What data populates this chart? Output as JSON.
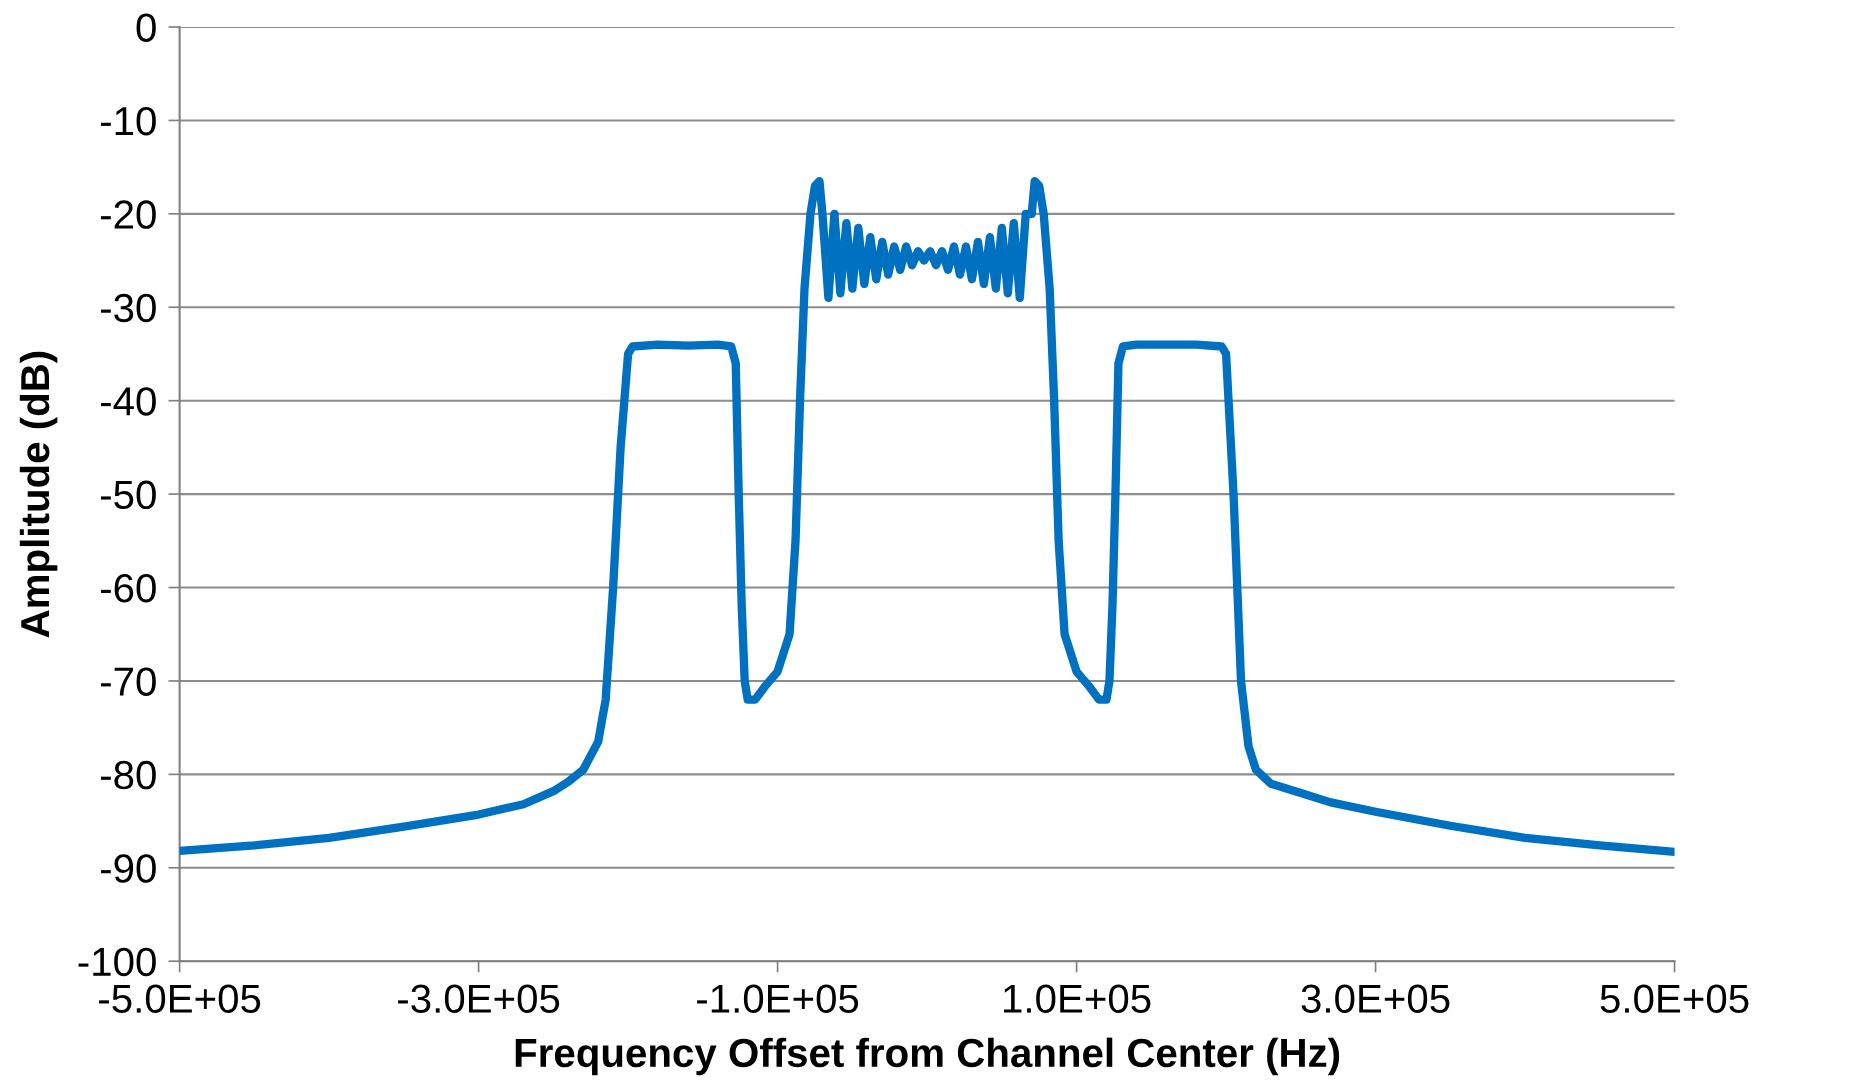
{
  "chart_data": {
    "type": "line",
    "xlabel": "Frequency Offset from Channel Center (Hz)",
    "ylabel": "Amplitude (dB)",
    "xlim": [
      -500000,
      500000
    ],
    "ylim": [
      -100,
      0
    ],
    "xticks": [
      {
        "value": -500000,
        "label": "-5.0E+05"
      },
      {
        "value": -300000,
        "label": "-3.0E+05"
      },
      {
        "value": -100000,
        "label": "-1.0E+05"
      },
      {
        "value": 100000,
        "label": "1.0E+05"
      },
      {
        "value": 300000,
        "label": "3.0E+05"
      },
      {
        "value": 500000,
        "label": "5.0E+05"
      }
    ],
    "yticks": [
      0,
      -10,
      -20,
      -30,
      -40,
      -50,
      -60,
      -70,
      -80,
      -90,
      -100
    ],
    "grid": "y",
    "legend": false,
    "marker": "none",
    "line_style": "solid",
    "series": [
      {
        "color": "#0070c0",
        "x": [
          -500000,
          -450000,
          -400000,
          -350000,
          -300000,
          -270000,
          -250000,
          -240000,
          -230000,
          -220000,
          -215000,
          -210000,
          -205000,
          -200000,
          -197000,
          -180000,
          -160000,
          -140000,
          -131000,
          -128000,
          -126000,
          -124000,
          -122000,
          -120000,
          -115000,
          -108000,
          -100000,
          -92000,
          -88000,
          -85000,
          -82000,
          -78000,
          -75000,
          -72000,
          -70000,
          -66000,
          -62000,
          -58000,
          -54000,
          -50000,
          -46000,
          -42000,
          -38000,
          -34000,
          -30000,
          -26000,
          -22000,
          -18000,
          -14000,
          -10000,
          -6000,
          -2000,
          2000,
          6000,
          10000,
          14000,
          18000,
          22000,
          26000,
          30000,
          34000,
          38000,
          42000,
          46000,
          50000,
          54000,
          58000,
          62000,
          66000,
          70000,
          72000,
          75000,
          78000,
          82000,
          85000,
          88000,
          92000,
          100000,
          108000,
          115000,
          120000,
          122000,
          124000,
          126000,
          128000,
          131000,
          140000,
          160000,
          180000,
          197000,
          200000,
          205000,
          210000,
          215000,
          220000,
          230000,
          250000,
          270000,
          300000,
          350000,
          400000,
          450000,
          500000
        ],
        "values": [
          -88.2,
          -87.6,
          -86.8,
          -85.6,
          -84.3,
          -83.2,
          -81.8,
          -80.8,
          -79.5,
          -76.5,
          -72,
          -60,
          -45,
          -35,
          -34.2,
          -34,
          -34.1,
          -34,
          -34.2,
          -36,
          -50,
          -62,
          -70,
          -72,
          -72,
          -70.5,
          -69,
          -65,
          -55,
          -40,
          -28,
          -20,
          -17,
          -16.5,
          -20,
          -29,
          -20,
          -28.5,
          -21,
          -28,
          -21.5,
          -27.5,
          -22.5,
          -27,
          -23,
          -26.5,
          -23.5,
          -26,
          -23.5,
          -25.5,
          -24,
          -25,
          -24,
          -25.5,
          -24,
          -26,
          -23.5,
          -26.5,
          -23.5,
          -27,
          -23,
          -27.5,
          -22.5,
          -28,
          -21.5,
          -28.5,
          -21,
          -29,
          -20,
          -20,
          -16.5,
          -17,
          -20,
          -28,
          -40,
          -55,
          -65,
          -69,
          -70.5,
          -72,
          -72,
          -70,
          -62,
          -50,
          -36,
          -34.2,
          -34,
          -34,
          -34,
          -34.2,
          -35,
          -50,
          -70,
          -77,
          -79.5,
          -81,
          -82,
          -83,
          -84,
          -85.5,
          -86.8,
          -87.6,
          -88.3
        ]
      }
    ]
  }
}
